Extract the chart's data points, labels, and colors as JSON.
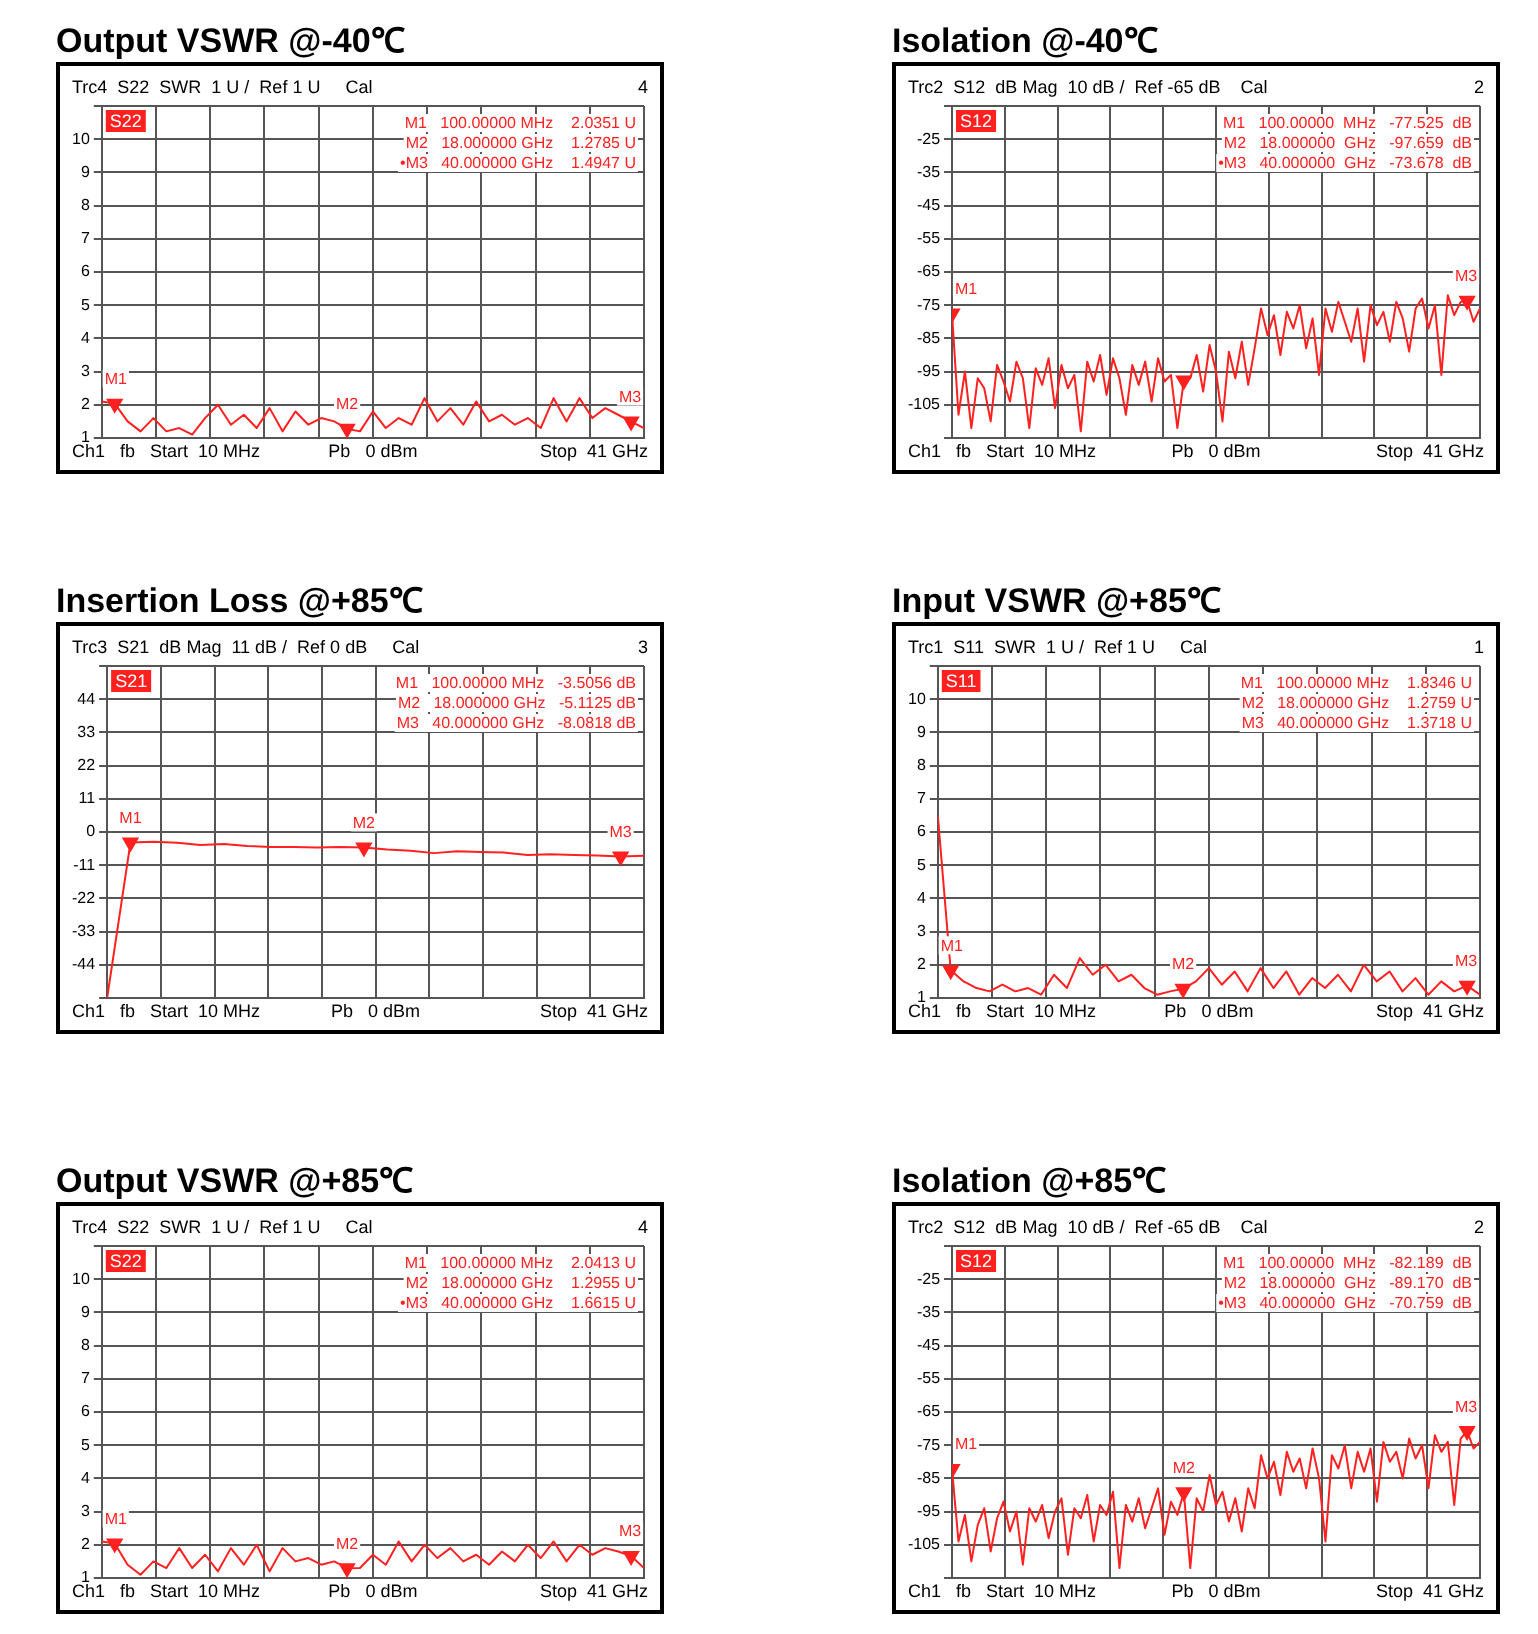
{
  "chart_data": [
    {
      "type": "line",
      "title": "Output VSWR @-40℃",
      "categories": [
        null,
        null,
        null,
        null,
        null,
        null,
        null,
        null,
        null,
        null,
        null,
        null,
        null,
        null,
        null,
        null,
        null,
        null,
        null,
        null,
        null,
        null,
        null,
        null,
        null,
        null,
        null,
        null,
        null,
        null,
        null,
        null,
        null,
        null,
        null,
        null,
        null,
        null,
        null,
        null,
        null,
        null,
        null
      ],
      "series": [
        {
          "color": "#ff2020",
          "values": [
            2.1,
            2.0351,
            1.5,
            1.2,
            1.6,
            1.2,
            1.3,
            1.1,
            1.6,
            2.0,
            1.4,
            1.7,
            1.3,
            1.9,
            1.2,
            1.8,
            1.4,
            1.6,
            1.5,
            1.2785,
            1.2,
            1.8,
            1.3,
            1.6,
            1.4,
            2.2,
            1.5,
            1.9,
            1.4,
            2.1,
            1.5,
            1.7,
            1.4,
            1.6,
            1.3,
            2.2,
            1.5,
            2.2,
            1.6,
            1.9,
            1.7,
            1.4947,
            1.3
          ]
        },
        {
          "type": "scatter",
          "color": "#ff2020",
          "values": [
            null,
            2.0351,
            null,
            null,
            null,
            null,
            null,
            null,
            null,
            null,
            null,
            null,
            null,
            null,
            null,
            null,
            null,
            null,
            null,
            1.2785,
            null,
            null,
            null,
            null,
            null,
            null,
            null,
            null,
            null,
            null,
            null,
            null,
            null,
            null,
            null,
            null,
            null,
            null,
            null,
            null,
            null,
            1.4947,
            null
          ]
        }
      ],
      "ylim": [
        1,
        11
      ],
      "yticks": [
        1,
        2,
        3,
        4,
        5,
        6,
        7,
        8,
        9,
        10,
        {
          "value": 11,
          "label": null
        }
      ],
      "grid": true,
      "tick_labels": "y",
      "annotations": [
        "Trc4  S22  SWR  1 U /  Ref 1 U     Cal",
        "4",
        "S22",
        "M1   100.00000 MHz    2.0351 U",
        "M2   18.000000 GHz    1.2785 U",
        "•M3   40.000000 GHz    1.4947 U",
        "Ch1   fb   Start  10 MHz",
        "Pb   0 dBm",
        "Stop  41 GHz",
        {
          "text": "M1",
          "y": 2.0351
        },
        {
          "text": "M2",
          "y": 1.2785
        },
        {
          "text": "M3",
          "y": 1.4947
        }
      ]
    },
    {
      "type": "line",
      "title": "Isolation @-40℃",
      "categories": [
        null,
        null,
        null,
        null,
        null,
        null,
        null,
        null,
        null,
        null,
        null,
        null,
        null,
        null,
        null,
        null,
        null,
        null,
        null,
        null,
        null,
        null,
        null,
        null,
        null,
        null,
        null,
        null,
        null,
        null,
        null,
        null,
        null,
        null,
        null,
        null,
        null,
        null,
        null,
        null,
        null,
        null,
        null,
        null,
        null,
        null,
        null,
        null,
        null,
        null,
        null,
        null,
        null,
        null,
        null,
        null,
        null,
        null,
        null,
        null,
        null,
        null,
        null,
        null,
        null,
        null,
        null,
        null,
        null,
        null,
        null,
        null,
        null,
        null,
        null,
        null,
        null,
        null,
        null,
        null,
        null,
        null,
        null
      ],
      "series": [
        {
          "color": "#ff2020",
          "values": [
            -77.525,
            -108,
            -95,
            -112,
            -97,
            -100,
            -110,
            -93,
            -98,
            -104,
            -92,
            -97,
            -112,
            -94,
            -99,
            -91,
            -106,
            -93,
            -100,
            -96,
            -113,
            -92,
            -98,
            -90,
            -102,
            -91,
            -97,
            -108,
            -93,
            -99,
            -92,
            -104,
            -91,
            -98,
            -96,
            -112,
            -97.659,
            -97,
            -90,
            -101,
            -87,
            -95,
            -110,
            -89,
            -97,
            -86,
            -99,
            -88,
            -76,
            -84,
            -78,
            -90,
            -77,
            -82,
            -75,
            -88,
            -79,
            -96,
            -76,
            -83,
            -74,
            -80,
            -86,
            -76,
            -92,
            -75,
            -81,
            -77,
            -86,
            -74,
            -79,
            -89,
            -76,
            -73,
            -82,
            -75,
            -96,
            -72,
            -78,
            -74,
            -73.678,
            -80,
            -76
          ]
        },
        {
          "type": "scatter",
          "color": "#ff2020",
          "values": [
            -77.525,
            null,
            null,
            null,
            null,
            null,
            null,
            null,
            null,
            null,
            null,
            null,
            null,
            null,
            null,
            null,
            null,
            null,
            null,
            null,
            null,
            null,
            null,
            null,
            null,
            null,
            null,
            null,
            null,
            null,
            null,
            null,
            null,
            null,
            null,
            null,
            -97.659,
            null,
            null,
            null,
            null,
            null,
            null,
            null,
            null,
            null,
            null,
            null,
            null,
            null,
            null,
            null,
            null,
            null,
            null,
            null,
            null,
            null,
            null,
            null,
            null,
            null,
            null,
            null,
            null,
            null,
            null,
            null,
            null,
            null,
            null,
            null,
            null,
            null,
            null,
            null,
            null,
            null,
            null,
            null,
            -73.678,
            null,
            null
          ]
        }
      ],
      "ylim": [
        -115,
        -15
      ],
      "yticks": [
        {
          "value": -115,
          "label": null
        },
        -105,
        -95,
        -85,
        -75,
        -65,
        -55,
        -45,
        -35,
        -25,
        {
          "value": -15,
          "label": null
        }
      ],
      "grid": true,
      "tick_labels": "y",
      "annotations": [
        "Trc2  S12  dB Mag  10 dB /  Ref -65 dB    Cal",
        "2",
        "S12",
        "M1   100.00000  MHz   -77.525  dB",
        "M2   18.000000  GHz   -97.659  dB",
        "•M3   40.000000  GHz   -73.678  dB",
        "Ch1   fb   Start  10 MHz",
        "Pb   0 dBm",
        "Stop  41 GHz",
        {
          "text": "M1",
          "y": -77.525
        },
        {
          "text": "M3",
          "y": -73.678
        }
      ]
    },
    {
      "type": "line",
      "title": "Insertion Loss @+85℃",
      "categories": [
        null,
        null,
        null,
        null,
        null,
        null,
        null,
        null,
        null,
        null,
        null,
        null,
        null,
        null,
        null,
        null,
        null,
        null,
        null,
        null,
        null,
        null,
        null,
        null
      ],
      "series": [
        {
          "color": "#ff2020",
          "values": [
            -55,
            -3.5056,
            -3.2,
            -3.6,
            -4.3,
            -4.0,
            -4.6,
            -5.0,
            -5.0,
            -5.1,
            -5.0,
            -5.1125,
            -5.8,
            -6.2,
            -7.0,
            -6.4,
            -6.6,
            -6.8,
            -7.6,
            -7.4,
            -7.6,
            -7.8,
            -8.0818,
            -7.9
          ]
        },
        {
          "type": "scatter",
          "color": "#ff2020",
          "values": [
            null,
            -3.5056,
            null,
            null,
            null,
            null,
            null,
            null,
            null,
            null,
            null,
            -5.1125,
            null,
            null,
            null,
            null,
            null,
            null,
            null,
            null,
            null,
            null,
            -8.0818,
            null
          ]
        }
      ],
      "ylim": [
        -55,
        55
      ],
      "yticks": [
        {
          "value": -55,
          "label": null
        },
        -44,
        -33,
        -22,
        -11,
        0,
        11,
        22,
        33,
        44,
        {
          "value": 55,
          "label": null
        }
      ],
      "grid": true,
      "tick_labels": "y",
      "annotations": [
        "Trc3  S21  dB Mag  11 dB /  Ref 0 dB     Cal",
        "3",
        "S21",
        "M1   100.00000 MHz   -3.5056 dB",
        "M2   18.000000 GHz   -5.1125 dB",
        "M3   40.000000 GHz   -8.0818 dB",
        "Ch1   fb   Start  10 MHz",
        "Pb   0 dBm",
        "Stop  41 GHz",
        {
          "text": "M1",
          "y": -3.5056
        },
        {
          "text": "M2",
          "y": -5.1125
        },
        {
          "text": "M3",
          "y": -8.0818
        }
      ]
    },
    {
      "type": "line",
      "title": "Input VSWR @+85℃",
      "categories": [
        null,
        null,
        null,
        null,
        null,
        null,
        null,
        null,
        null,
        null,
        null,
        null,
        null,
        null,
        null,
        null,
        null,
        null,
        null,
        null,
        null,
        null,
        null,
        null,
        null,
        null,
        null,
        null,
        null,
        null,
        null,
        null,
        null,
        null,
        null,
        null,
        null,
        null,
        null,
        null,
        null,
        null,
        null
      ],
      "series": [
        {
          "color": "#ff2020",
          "values": [
            6.5,
            1.8346,
            1.5,
            1.3,
            1.2,
            1.4,
            1.2,
            1.3,
            1.1,
            1.7,
            1.3,
            2.2,
            1.7,
            2.0,
            1.5,
            1.7,
            1.3,
            1.1,
            1.2,
            1.2759,
            1.5,
            1.9,
            1.4,
            1.8,
            1.2,
            1.9,
            1.3,
            1.8,
            1.1,
            1.6,
            1.3,
            1.7,
            1.2,
            2.0,
            1.5,
            1.8,
            1.2,
            1.6,
            1.1,
            1.5,
            1.2,
            1.3718,
            1.1
          ]
        },
        {
          "type": "scatter",
          "color": "#ff2020",
          "values": [
            null,
            1.8346,
            null,
            null,
            null,
            null,
            null,
            null,
            null,
            null,
            null,
            null,
            null,
            null,
            null,
            null,
            null,
            null,
            null,
            1.2759,
            null,
            null,
            null,
            null,
            null,
            null,
            null,
            null,
            null,
            null,
            null,
            null,
            null,
            null,
            null,
            null,
            null,
            null,
            null,
            null,
            null,
            1.3718,
            null
          ]
        }
      ],
      "ylim": [
        1,
        11
      ],
      "yticks": [
        1,
        2,
        3,
        4,
        5,
        6,
        7,
        8,
        9,
        10,
        {
          "value": 11,
          "label": null
        }
      ],
      "grid": true,
      "tick_labels": "y",
      "annotations": [
        "Trc1  S11  SWR  1 U /  Ref 1 U     Cal",
        "1",
        "S11",
        "M1   100.00000 MHz    1.8346 U",
        "M2   18.000000 GHz    1.2759 U",
        "M3   40.000000 GHz    1.3718 U",
        "Ch1   fb   Start  10 MHz",
        "Pb   0 dBm",
        "Stop  41 GHz",
        {
          "text": "M1",
          "y": 1.8346
        },
        {
          "text": "M2",
          "y": 1.2759
        },
        {
          "text": "M3",
          "y": 1.3718
        }
      ]
    },
    {
      "type": "line",
      "title": "Output VSWR @+85℃",
      "categories": [
        null,
        null,
        null,
        null,
        null,
        null,
        null,
        null,
        null,
        null,
        null,
        null,
        null,
        null,
        null,
        null,
        null,
        null,
        null,
        null,
        null,
        null,
        null,
        null,
        null,
        null,
        null,
        null,
        null,
        null,
        null,
        null,
        null,
        null,
        null,
        null,
        null,
        null,
        null,
        null,
        null,
        null,
        null
      ],
      "series": [
        {
          "color": "#ff2020",
          "values": [
            2.1,
            2.0413,
            1.4,
            1.1,
            1.5,
            1.3,
            1.9,
            1.3,
            1.7,
            1.2,
            1.9,
            1.4,
            2.0,
            1.2,
            1.9,
            1.5,
            1.6,
            1.4,
            1.5,
            1.2955,
            1.3,
            1.7,
            1.4,
            2.1,
            1.5,
            2.0,
            1.6,
            1.9,
            1.5,
            1.7,
            1.4,
            1.8,
            1.5,
            2.0,
            1.6,
            2.1,
            1.5,
            2.0,
            1.7,
            1.9,
            1.8,
            1.6615,
            1.3
          ]
        },
        {
          "type": "scatter",
          "color": "#ff2020",
          "values": [
            null,
            2.0413,
            null,
            null,
            null,
            null,
            null,
            null,
            null,
            null,
            null,
            null,
            null,
            null,
            null,
            null,
            null,
            null,
            null,
            1.2955,
            null,
            null,
            null,
            null,
            null,
            null,
            null,
            null,
            null,
            null,
            null,
            null,
            null,
            null,
            null,
            null,
            null,
            null,
            null,
            null,
            null,
            1.6615,
            null
          ]
        }
      ],
      "ylim": [
        1,
        11
      ],
      "yticks": [
        1,
        2,
        3,
        4,
        5,
        6,
        7,
        8,
        9,
        10,
        {
          "value": 11,
          "label": null
        }
      ],
      "grid": true,
      "tick_labels": "y",
      "annotations": [
        "Trc4  S22  SWR  1 U /  Ref 1 U     Cal",
        "4",
        "S22",
        "M1   100.00000 MHz    2.0413 U",
        "M2   18.000000 GHz    1.2955 U",
        "•M3   40.000000 GHz    1.6615 U",
        "Ch1   fb   Start  10 MHz",
        "Pb   0 dBm",
        "Stop  41 GHz",
        {
          "text": "M1",
          "y": 2.0413
        },
        {
          "text": "M2",
          "y": 1.2955
        },
        {
          "text": "M3",
          "y": 1.6615
        }
      ]
    },
    {
      "type": "line",
      "title": "Isolation @+85℃",
      "categories": [
        null,
        null,
        null,
        null,
        null,
        null,
        null,
        null,
        null,
        null,
        null,
        null,
        null,
        null,
        null,
        null,
        null,
        null,
        null,
        null,
        null,
        null,
        null,
        null,
        null,
        null,
        null,
        null,
        null,
        null,
        null,
        null,
        null,
        null,
        null,
        null,
        null,
        null,
        null,
        null,
        null,
        null,
        null,
        null,
        null,
        null,
        null,
        null,
        null,
        null,
        null,
        null,
        null,
        null,
        null,
        null,
        null,
        null,
        null,
        null,
        null,
        null,
        null,
        null,
        null,
        null,
        null,
        null,
        null,
        null,
        null,
        null,
        null,
        null,
        null,
        null,
        null,
        null,
        null,
        null,
        null,
        null,
        null
      ],
      "series": [
        {
          "color": "#ff2020",
          "values": [
            -82.189,
            -104,
            -96,
            -110,
            -99,
            -94,
            -107,
            -97,
            -92,
            -101,
            -95,
            -111,
            -94,
            -98,
            -93,
            -103,
            -95,
            -91,
            -108,
            -94,
            -97,
            -90,
            -104,
            -93,
            -96,
            -89,
            -112,
            -93,
            -98,
            -91,
            -100,
            -94,
            -88,
            -102,
            -92,
            -96,
            -89.17,
            -112,
            -91,
            -95,
            -84,
            -93,
            -89,
            -98,
            -91,
            -101,
            -88,
            -94,
            -78,
            -85,
            -80,
            -90,
            -77,
            -83,
            -79,
            -88,
            -76,
            -85,
            -104,
            -78,
            -82,
            -75,
            -88,
            -77,
            -83,
            -76,
            -92,
            -74,
            -80,
            -77,
            -85,
            -73,
            -79,
            -75,
            -88,
            -72,
            -77,
            -74,
            -93,
            -73,
            -70.759,
            -76,
            -74
          ]
        },
        {
          "type": "scatter",
          "color": "#ff2020",
          "values": [
            -82.189,
            null,
            null,
            null,
            null,
            null,
            null,
            null,
            null,
            null,
            null,
            null,
            null,
            null,
            null,
            null,
            null,
            null,
            null,
            null,
            null,
            null,
            null,
            null,
            null,
            null,
            null,
            null,
            null,
            null,
            null,
            null,
            null,
            null,
            null,
            null,
            -89.17,
            null,
            null,
            null,
            null,
            null,
            null,
            null,
            null,
            null,
            null,
            null,
            null,
            null,
            null,
            null,
            null,
            null,
            null,
            null,
            null,
            null,
            null,
            null,
            null,
            null,
            null,
            null,
            null,
            null,
            null,
            null,
            null,
            null,
            null,
            null,
            null,
            null,
            null,
            null,
            null,
            null,
            null,
            null,
            -70.759,
            null,
            null
          ]
        }
      ],
      "ylim": [
        -115,
        -15
      ],
      "yticks": [
        {
          "value": -115,
          "label": null
        },
        -105,
        -95,
        -85,
        -75,
        -65,
        -55,
        -45,
        -35,
        -25,
        {
          "value": -15,
          "label": null
        }
      ],
      "grid": true,
      "tick_labels": "y",
      "annotations": [
        "Trc2  S12  dB Mag  10 dB /  Ref -65 dB    Cal",
        "2",
        "S12",
        "M1   100.00000  MHz   -82.189  dB",
        "M2   18.000000  GHz   -89.170  dB",
        "•M3   40.000000  GHz   -70.759  dB",
        "Ch1   fb   Start  10 MHz",
        "Pb   0 dBm",
        "Stop  41 GHz",
        {
          "text": "M1",
          "y": -82.189
        },
        {
          "text": "M2",
          "y": -89.17
        },
        {
          "text": "M3",
          "y": -70.759
        }
      ]
    }
  ]
}
